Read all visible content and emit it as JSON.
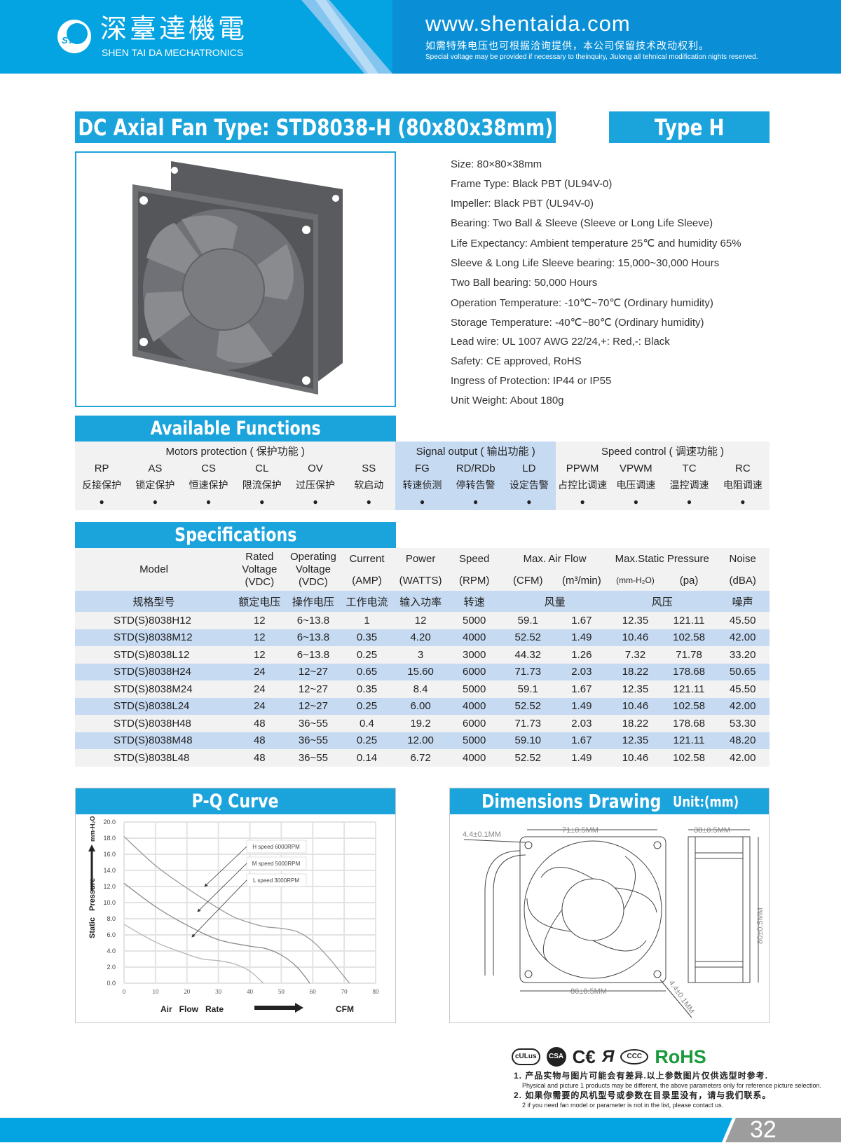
{
  "header": {
    "brand_cn": "深臺達機電",
    "brand_en": "SHEN TAI DA MECHATRONICS",
    "logo_text": "STD",
    "website": "www.shentaida.com",
    "notice_cn": "如需特殊电压也可根据洽询提供，本公司保留技术改动权利。",
    "notice_en": "Special voltage may be provided if necessary to theinquiry, Jiulong all tehnical modification nights reserved."
  },
  "title": "DC Axial Fan  Type: STD8038-H (80x80x38mm)",
  "type_badge": "Type  H",
  "specs": [
    "Size: 80×80×38mm",
    "Frame Type: Black PBT (UL94V-0)",
    "Impeller: Black PBT (UL94V-0)",
    "Bearing: Two Ball & Sleeve (Sleeve or Long Life Sleeve)",
    "Life Expectancy: Ambient temperature 25℃ and humidity 65%",
    "Sleeve & Long Life Sleeve bearing: 15,000~30,000 Hours",
    "Two Ball bearing: 50,000 Hours",
    "Operation Temperature: -10℃~70℃ (Ordinary humidity)",
    "Storage Temperature: -40℃~80℃ (Ordinary humidity)",
    "Lead wire: UL 1007 AWG 22/24,+: Red,-: Black",
    "Safety: CE approved, RoHS",
    "Ingress of Protection: IP44 or IP55",
    "Unit Weight: About 180g"
  ],
  "functions": {
    "title": "Available Functions",
    "groups": [
      {
        "label": "Motors protection ( 保护功能 )",
        "span": 6
      },
      {
        "label": "Signal output ( 输出功能 )",
        "span": 3
      },
      {
        "label": "Speed control ( 调速功能 )",
        "span": 4
      }
    ],
    "items": [
      {
        "code": "RP",
        "cn": "反接保护",
        "available": true
      },
      {
        "code": "AS",
        "cn": "锁定保护",
        "available": true
      },
      {
        "code": "CS",
        "cn": "恒速保护",
        "available": true
      },
      {
        "code": "CL",
        "cn": "限流保护",
        "available": true
      },
      {
        "code": "OV",
        "cn": "过压保护",
        "available": true
      },
      {
        "code": "SS",
        "cn": "软启动",
        "available": true
      },
      {
        "code": "FG",
        "cn": "转速侦测",
        "available": true
      },
      {
        "code": "RD/RDb",
        "cn": "停转告警",
        "available": true
      },
      {
        "code": "LD",
        "cn": "设定告警",
        "available": true
      },
      {
        "code": "PPWM",
        "cn": "占控比调速",
        "available": true
      },
      {
        "code": "VPWM",
        "cn": "电压调速",
        "available": true
      },
      {
        "code": "TC",
        "cn": "温控调速",
        "available": true
      },
      {
        "code": "RC",
        "cn": "电阻调速",
        "available": true
      }
    ],
    "mark": "●"
  },
  "specifications": {
    "title": "Specifications",
    "header_top": [
      "Model",
      "Rated Voltage (VDC)",
      "Operating Voltage (VDC)",
      "Current",
      "Power",
      "Speed",
      "Max. Air Flow",
      "Max.Static Pressure",
      "Noise"
    ],
    "header_units": [
      "(AMP)",
      "(WATTS)",
      "(RPM)",
      "(CFM)",
      "(m³/min)",
      "(mm-H₂O)",
      "(pa)",
      "(dBA)"
    ],
    "header_cn": [
      "规格型号",
      "额定电压",
      "操作电压",
      "工作电流",
      "输入功率",
      "转速",
      "风量",
      "风压",
      "噪声"
    ],
    "rows": [
      [
        "STD(S)8038H12",
        "12",
        "6~13.8",
        "1",
        "12",
        "5000",
        "59.1",
        "1.67",
        "12.35",
        "121.11",
        "45.50"
      ],
      [
        "STD(S)8038M12",
        "12",
        "6~13.8",
        "0.35",
        "4.20",
        "4000",
        "52.52",
        "1.49",
        "10.46",
        "102.58",
        "42.00"
      ],
      [
        "STD(S)8038L12",
        "12",
        "6~13.8",
        "0.25",
        "3",
        "3000",
        "44.32",
        "1.26",
        "7.32",
        "71.78",
        "33.20"
      ],
      [
        "STD(S)8038H24",
        "24",
        "12~27",
        "0.65",
        "15.60",
        "6000",
        "71.73",
        "2.03",
        "18.22",
        "178.68",
        "50.65"
      ],
      [
        "STD(S)8038M24",
        "24",
        "12~27",
        "0.35",
        "8.4",
        "5000",
        "59.1",
        "1.67",
        "12.35",
        "121.11",
        "45.50"
      ],
      [
        "STD(S)8038L24",
        "24",
        "12~27",
        "0.25",
        "6.00",
        "4000",
        "52.52",
        "1.49",
        "10.46",
        "102.58",
        "42.00"
      ],
      [
        "STD(S)8038H48",
        "48",
        "36~55",
        "0.4",
        "19.2",
        "6000",
        "71.73",
        "2.03",
        "18.22",
        "178.68",
        "53.30"
      ],
      [
        "STD(S)8038M48",
        "48",
        "36~55",
        "0.25",
        "12.00",
        "5000",
        "59.10",
        "1.67",
        "12.35",
        "121.11",
        "48.20"
      ],
      [
        "STD(S)8038L48",
        "48",
        "36~55",
        "0.14",
        "6.72",
        "4000",
        "52.52",
        "1.49",
        "10.46",
        "102.58",
        "42.00"
      ]
    ]
  },
  "chart_data": {
    "type": "line",
    "title": "P-Q Curve",
    "xlabel": "Air   Flow   Rate",
    "xunit": "CFM",
    "ylabel": "Static   Pressure",
    "yunit": "mm-H₂O",
    "xlim": [
      0,
      80
    ],
    "ylim": [
      0,
      20
    ],
    "xticks": [
      "0",
      "10",
      "20",
      "30",
      "40",
      "50",
      "60",
      "70",
      "80"
    ],
    "yticks": [
      "0.0",
      "2.0",
      "4.0",
      "6.0",
      "8.0",
      "10.0",
      "12.0",
      "14.0",
      "16.0",
      "18.0",
      "20.0"
    ],
    "grid": true,
    "series": [
      {
        "name": "H  speed  6000RPM",
        "color": "#9a9a9a",
        "x": [
          0,
          10,
          20,
          30,
          35,
          40,
          45,
          50,
          55,
          60,
          65,
          70,
          71.7
        ],
        "y": [
          18.2,
          14.6,
          11.8,
          9.3,
          8.2,
          7.5,
          7.0,
          6.8,
          6.4,
          5.2,
          3.2,
          0.8,
          0
        ]
      },
      {
        "name": "M  speed  5000RPM",
        "color": "#8a8a8a",
        "x": [
          0,
          10,
          20,
          30,
          40,
          45,
          50,
          55,
          59.1
        ],
        "y": [
          12.4,
          9.5,
          7.2,
          5.4,
          4.6,
          4.3,
          3.5,
          2.0,
          0
        ]
      },
      {
        "name": "L  speed  3000RPM",
        "color": "#b5b5b5",
        "x": [
          0,
          10,
          20,
          25,
          30,
          35,
          40,
          44.3
        ],
        "y": [
          7.3,
          5.1,
          3.6,
          3.0,
          2.8,
          2.4,
          1.5,
          0
        ]
      }
    ]
  },
  "dimensions": {
    "title": "Dimensions Drawing",
    "unit": "Unit:(mm)",
    "labels": {
      "hole_spacing": "71±0.5MM",
      "hole_dia": "4.4±0.1MM",
      "width": "80±0.5MM",
      "depth": "38±0.5MM",
      "height": "80±0.5MM",
      "hole_dia2": "4.4±0.1MM"
    }
  },
  "certifications": {
    "rohs": "RoHS",
    "marks": [
      "cULus",
      "CSA",
      "CE",
      "UR",
      "CCC"
    ]
  },
  "notes": [
    {
      "cn": "1. 产品实物与图片可能会有差异.以上参数图片仅供选型时参考.",
      "en": "Physical and picture 1 products may be different, the above parameters only for reference picture selection."
    },
    {
      "cn": "2. 如果你需要的风机型号或参数在目录里没有，请与我们联系。",
      "en": "2 if you need fan model or parameter is not in the list, please contact us."
    }
  ],
  "page_number": "32",
  "colors": {
    "accent": "#1ba3dc",
    "header_light": "#04a3e2",
    "header_dark": "#0a8fd6",
    "row_blue": "#c6daf2",
    "row_grey": "#f2f2f2",
    "rohs": "#1a9a3c"
  }
}
